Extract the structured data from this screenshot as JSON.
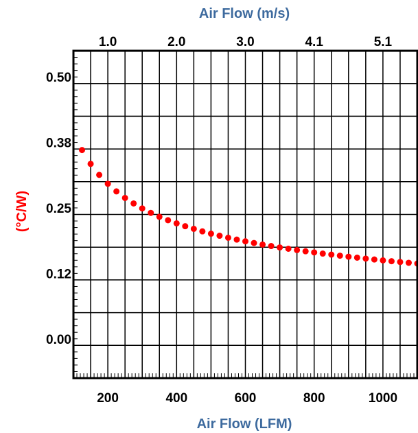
{
  "chart_data": {
    "type": "scatter",
    "title": "",
    "xlabel_top": "Air Flow (m/s)",
    "xlabel": "Air Flow (LFM)",
    "ylabel": "(°C/W)",
    "xlim": [
      100,
      1100
    ],
    "ylim": [
      -0.075,
      0.55
    ],
    "x_ticks": [
      200,
      400,
      600,
      800,
      1000
    ],
    "x_tick_labels": [
      "200",
      "400",
      "600",
      "800",
      "1000"
    ],
    "x_top_ticks": [
      200,
      400,
      600,
      800,
      1000
    ],
    "x_top_tick_labels": [
      "1.0",
      "2.0",
      "3.0",
      "4.1",
      "5.1"
    ],
    "y_ticks": [
      0.0,
      0.125,
      0.25,
      0.375,
      0.5
    ],
    "y_tick_labels": [
      "0.00",
      "0.12",
      "0.25",
      "0.38",
      "0.50"
    ],
    "grid": true,
    "legend": "none",
    "marker_color": "#ff0000",
    "series": [
      {
        "x": [
          125,
          150,
          175,
          200,
          225,
          250,
          275,
          300,
          325,
          350,
          375,
          400,
          425,
          450,
          475,
          500,
          525,
          550,
          575,
          600,
          625,
          650,
          675,
          700,
          725,
          750,
          775,
          800,
          825,
          850,
          875,
          900,
          925,
          950,
          975,
          1000,
          1025,
          1050,
          1075,
          1100
        ],
        "values": [
          0.3605,
          0.334,
          0.313,
          0.296,
          0.2815,
          0.269,
          0.2585,
          0.249,
          0.2405,
          0.233,
          0.2265,
          0.2205,
          0.215,
          0.21,
          0.2052,
          0.2008,
          0.1968,
          0.193,
          0.1895,
          0.1862,
          0.183,
          0.18,
          0.1772,
          0.1745,
          0.172,
          0.1695,
          0.1672,
          0.165,
          0.1628,
          0.1608,
          0.1588,
          0.1568,
          0.155,
          0.1532,
          0.1515,
          0.1498,
          0.1482,
          0.1467,
          0.1452,
          0.1438
        ]
      }
    ]
  }
}
